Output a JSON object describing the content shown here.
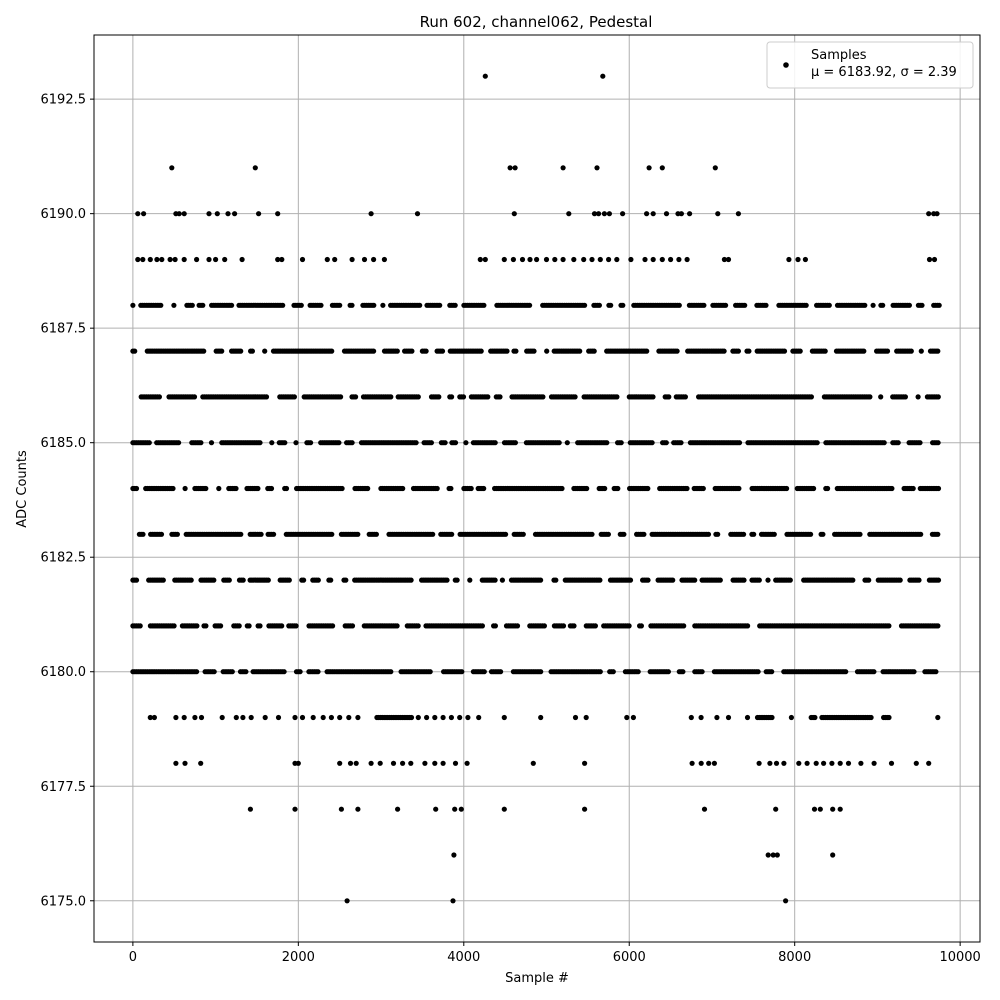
{
  "chart_data": {
    "type": "scatter",
    "title": "Run 602, channel062, Pedestal",
    "xlabel": "Sample #",
    "ylabel": "ADC Counts",
    "xlim": [
      -470,
      10240
    ],
    "ylim": [
      6174.1,
      6193.9
    ],
    "xticks": [
      0,
      2000,
      4000,
      6000,
      8000,
      10000
    ],
    "xtick_labels": [
      "0",
      "2000",
      "4000",
      "6000",
      "8000",
      "10000"
    ],
    "yticks": [
      6175.0,
      6177.5,
      6180.0,
      6182.5,
      6185.0,
      6187.5,
      6190.0,
      6192.5
    ],
    "ytick_labels": [
      "6175.0",
      "6177.5",
      "6180.0",
      "6182.5",
      "6185.0",
      "6187.5",
      "6190.0",
      "6192.5"
    ],
    "grid": true,
    "legend_position": "top-right",
    "series": [
      {
        "name": "Samples",
        "legend_detail": "μ = 6183.92, σ = 2.39",
        "color": "#000000",
        "n_samples": 9750,
        "dense_levels": [
          {
            "y": 6188,
            "ranges": [
              [
                0,
                9750
              ]
            ]
          },
          {
            "y": 6187,
            "ranges": [
              [
                0,
                9750
              ]
            ]
          },
          {
            "y": 6186,
            "ranges": [
              [
                0,
                9750
              ]
            ]
          },
          {
            "y": 6185,
            "ranges": [
              [
                0,
                9750
              ]
            ]
          },
          {
            "y": 6184,
            "ranges": [
              [
                0,
                9750
              ]
            ]
          },
          {
            "y": 6183,
            "ranges": [
              [
                0,
                9750
              ]
            ]
          },
          {
            "y": 6182,
            "ranges": [
              [
                0,
                9750
              ]
            ]
          },
          {
            "y": 6181,
            "ranges": [
              [
                0,
                9750
              ]
            ]
          },
          {
            "y": 6180,
            "ranges": [
              [
                0,
                9750
              ]
            ]
          },
          {
            "y": 6179,
            "ranges": [
              [
                2950,
                3400
              ],
              [
                6750,
                6950
              ],
              [
                7550,
                7800
              ],
              [
                8200,
                9200
              ]
            ]
          }
        ],
        "points": [
          [
            4260,
            6193
          ],
          [
            5680,
            6193
          ],
          [
            470,
            6191
          ],
          [
            1480,
            6191
          ],
          [
            4560,
            6191
          ],
          [
            4620,
            6191
          ],
          [
            5200,
            6191
          ],
          [
            5610,
            6191
          ],
          [
            6240,
            6191
          ],
          [
            6400,
            6191
          ],
          [
            7040,
            6191
          ],
          [
            60,
            6190
          ],
          [
            130,
            6190
          ],
          [
            520,
            6190
          ],
          [
            560,
            6190
          ],
          [
            620,
            6190
          ],
          [
            920,
            6190
          ],
          [
            1020,
            6190
          ],
          [
            1150,
            6190
          ],
          [
            1230,
            6190
          ],
          [
            1520,
            6190
          ],
          [
            1750,
            6190
          ],
          [
            2880,
            6190
          ],
          [
            3440,
            6190
          ],
          [
            4610,
            6190
          ],
          [
            5270,
            6190
          ],
          [
            5580,
            6190
          ],
          [
            5630,
            6190
          ],
          [
            5700,
            6190
          ],
          [
            5760,
            6190
          ],
          [
            5920,
            6190
          ],
          [
            6210,
            6190
          ],
          [
            6290,
            6190
          ],
          [
            6450,
            6190
          ],
          [
            6590,
            6190
          ],
          [
            6630,
            6190
          ],
          [
            6730,
            6190
          ],
          [
            7070,
            6190
          ],
          [
            7320,
            6190
          ],
          [
            9620,
            6190
          ],
          [
            9680,
            6190
          ],
          [
            9720,
            6190
          ],
          [
            60,
            6189
          ],
          [
            120,
            6189
          ],
          [
            210,
            6189
          ],
          [
            290,
            6189
          ],
          [
            350,
            6189
          ],
          [
            450,
            6189
          ],
          [
            510,
            6189
          ],
          [
            620,
            6189
          ],
          [
            770,
            6189
          ],
          [
            920,
            6189
          ],
          [
            1000,
            6189
          ],
          [
            1110,
            6189
          ],
          [
            1320,
            6189
          ],
          [
            1750,
            6189
          ],
          [
            1800,
            6189
          ],
          [
            2050,
            6189
          ],
          [
            2350,
            6189
          ],
          [
            2440,
            6189
          ],
          [
            2650,
            6189
          ],
          [
            2800,
            6189
          ],
          [
            2910,
            6189
          ],
          [
            3040,
            6189
          ],
          [
            4200,
            6189
          ],
          [
            4260,
            6189
          ],
          [
            4490,
            6189
          ],
          [
            4600,
            6189
          ],
          [
            4710,
            6189
          ],
          [
            4800,
            6189
          ],
          [
            4880,
            6189
          ],
          [
            5000,
            6189
          ],
          [
            5100,
            6189
          ],
          [
            5200,
            6189
          ],
          [
            5330,
            6189
          ],
          [
            5450,
            6189
          ],
          [
            5550,
            6189
          ],
          [
            5650,
            6189
          ],
          [
            5750,
            6189
          ],
          [
            5850,
            6189
          ],
          [
            6020,
            6189
          ],
          [
            6190,
            6189
          ],
          [
            6290,
            6189
          ],
          [
            6400,
            6189
          ],
          [
            6500,
            6189
          ],
          [
            6600,
            6189
          ],
          [
            6700,
            6189
          ],
          [
            7150,
            6189
          ],
          [
            7200,
            6189
          ],
          [
            7930,
            6189
          ],
          [
            8040,
            6189
          ],
          [
            8130,
            6189
          ],
          [
            9630,
            6189
          ],
          [
            9690,
            6189
          ],
          [
            210,
            6179
          ],
          [
            260,
            6179
          ],
          [
            520,
            6179
          ],
          [
            620,
            6179
          ],
          [
            750,
            6179
          ],
          [
            830,
            6179
          ],
          [
            1080,
            6179
          ],
          [
            1250,
            6179
          ],
          [
            1330,
            6179
          ],
          [
            1430,
            6179
          ],
          [
            1600,
            6179
          ],
          [
            1760,
            6179
          ],
          [
            1960,
            6179
          ],
          [
            2050,
            6179
          ],
          [
            2180,
            6179
          ],
          [
            2300,
            6179
          ],
          [
            2400,
            6179
          ],
          [
            2500,
            6179
          ],
          [
            2610,
            6179
          ],
          [
            2720,
            6179
          ],
          [
            3450,
            6179
          ],
          [
            3550,
            6179
          ],
          [
            3650,
            6179
          ],
          [
            3750,
            6179
          ],
          [
            3850,
            6179
          ],
          [
            3950,
            6179
          ],
          [
            4050,
            6179
          ],
          [
            4180,
            6179
          ],
          [
            4490,
            6179
          ],
          [
            4930,
            6179
          ],
          [
            5350,
            6179
          ],
          [
            5480,
            6179
          ],
          [
            5970,
            6179
          ],
          [
            6050,
            6179
          ],
          [
            7060,
            6179
          ],
          [
            7200,
            6179
          ],
          [
            7430,
            6179
          ],
          [
            7960,
            6179
          ],
          [
            9730,
            6179
          ],
          [
            520,
            6178
          ],
          [
            630,
            6178
          ],
          [
            820,
            6178
          ],
          [
            1960,
            6178
          ],
          [
            2000,
            6178
          ],
          [
            2500,
            6178
          ],
          [
            2630,
            6178
          ],
          [
            2700,
            6178
          ],
          [
            2880,
            6178
          ],
          [
            2990,
            6178
          ],
          [
            3150,
            6178
          ],
          [
            3260,
            6178
          ],
          [
            3360,
            6178
          ],
          [
            3530,
            6178
          ],
          [
            3650,
            6178
          ],
          [
            3750,
            6178
          ],
          [
            3900,
            6178
          ],
          [
            4040,
            6178
          ],
          [
            4840,
            6178
          ],
          [
            5460,
            6178
          ],
          [
            6760,
            6178
          ],
          [
            6870,
            6178
          ],
          [
            6960,
            6178
          ],
          [
            7030,
            6178
          ],
          [
            7570,
            6178
          ],
          [
            7700,
            6178
          ],
          [
            7780,
            6178
          ],
          [
            7870,
            6178
          ],
          [
            8050,
            6178
          ],
          [
            8150,
            6178
          ],
          [
            8260,
            6178
          ],
          [
            8350,
            6178
          ],
          [
            8450,
            6178
          ],
          [
            8550,
            6178
          ],
          [
            8650,
            6178
          ],
          [
            8800,
            6178
          ],
          [
            8960,
            6178
          ],
          [
            9170,
            6178
          ],
          [
            9470,
            6178
          ],
          [
            9620,
            6178
          ],
          [
            1420,
            6177
          ],
          [
            1960,
            6177
          ],
          [
            2520,
            6177
          ],
          [
            2720,
            6177
          ],
          [
            3200,
            6177
          ],
          [
            3660,
            6177
          ],
          [
            3890,
            6177
          ],
          [
            3970,
            6177
          ],
          [
            4490,
            6177
          ],
          [
            5460,
            6177
          ],
          [
            6910,
            6177
          ],
          [
            7770,
            6177
          ],
          [
            8240,
            6177
          ],
          [
            8310,
            6177
          ],
          [
            8460,
            6177
          ],
          [
            8550,
            6177
          ],
          [
            3880,
            6176
          ],
          [
            7680,
            6176
          ],
          [
            7740,
            6176
          ],
          [
            7790,
            6176
          ],
          [
            8460,
            6176
          ],
          [
            2590,
            6175
          ],
          [
            3870,
            6175
          ],
          [
            7890,
            6175
          ]
        ]
      }
    ]
  }
}
